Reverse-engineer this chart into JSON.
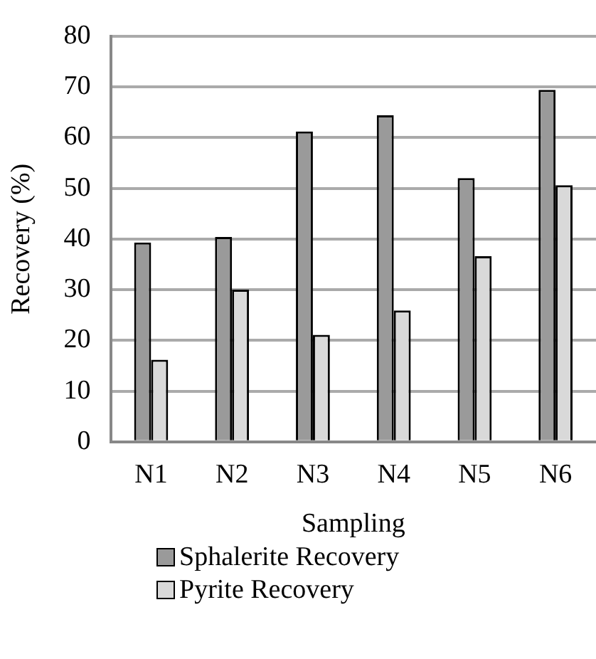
{
  "chart_data": {
    "type": "bar",
    "xlabel": "Sampling",
    "ylabel": "Recovery (%)",
    "categories": [
      "N1",
      "N2",
      "N3",
      "N4",
      "N5",
      "N6"
    ],
    "series": [
      {
        "name": "Sphalerite Recovery",
        "color": "#9a9a9a",
        "values": [
          39.3,
          40.4,
          61.2,
          64.4,
          52,
          69.4
        ]
      },
      {
        "name": "Pyrite Recovery",
        "color": "#d9d9d9",
        "values": [
          16.2,
          30,
          21.1,
          25.9,
          36.6,
          50.6
        ]
      }
    ],
    "ylim": [
      0,
      80
    ],
    "yticks": [
      0,
      10,
      20,
      30,
      40,
      50,
      60,
      70,
      80
    ],
    "grid": "y",
    "legend": "bottom"
  }
}
